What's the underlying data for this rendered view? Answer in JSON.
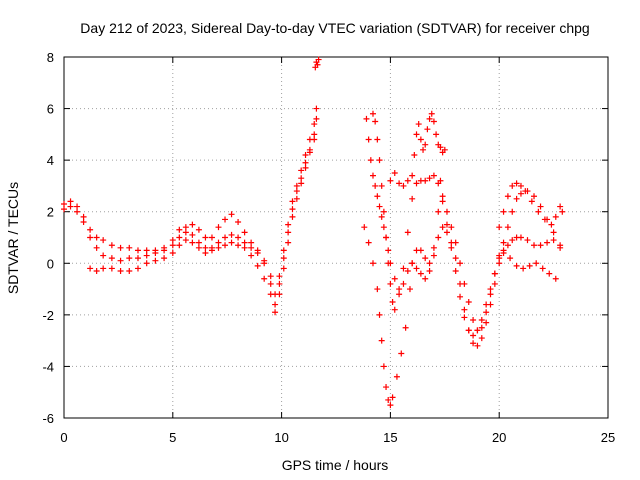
{
  "chart_data": {
    "type": "scatter",
    "title": "Day 212 of 2023, Sidereal Day-to-day VTEC variation (SDTVAR) for receiver chpg",
    "xlabel": "GPS time / hours",
    "ylabel": "SDTVAR / TECUs",
    "xlim": [
      0,
      25
    ],
    "ylim": [
      -6,
      8
    ],
    "xticks": [
      0,
      5,
      10,
      15,
      20,
      25
    ],
    "yticks": [
      -6,
      -4,
      -2,
      0,
      2,
      4,
      6,
      8
    ],
    "grid": true,
    "legend": "none",
    "marker": "+",
    "color": "#ff0000",
    "series": [
      {
        "points": [
          [
            0.0,
            2.3
          ],
          [
            0.3,
            2.4
          ],
          [
            0.6,
            2.2
          ],
          [
            0.9,
            1.8
          ],
          [
            1.2,
            1.3
          ],
          [
            1.5,
            1.0
          ],
          [
            1.8,
            0.9
          ],
          [
            2.2,
            0.7
          ],
          [
            2.6,
            0.6
          ],
          [
            3.0,
            0.6
          ],
          [
            3.4,
            0.5
          ],
          [
            3.8,
            0.5
          ],
          [
            4.2,
            0.5
          ],
          [
            4.6,
            0.6
          ],
          [
            5.0,
            0.9
          ],
          [
            5.3,
            1.3
          ],
          [
            5.6,
            1.4
          ],
          [
            5.9,
            1.1
          ],
          [
            6.2,
            0.8
          ],
          [
            6.5,
            0.6
          ],
          [
            6.8,
            0.6
          ],
          [
            7.1,
            0.8
          ],
          [
            7.4,
            1.0
          ],
          [
            7.7,
            1.1
          ],
          [
            8.0,
            1.0
          ],
          [
            8.3,
            0.8
          ],
          [
            8.6,
            0.6
          ],
          [
            8.9,
            0.4
          ],
          [
            9.2,
            0.1
          ],
          [
            9.5,
            -0.5
          ],
          [
            9.7,
            -1.2
          ],
          [
            9.9,
            -0.5
          ],
          [
            10.1,
            0.5
          ],
          [
            10.3,
            1.5
          ],
          [
            10.5,
            2.4
          ],
          [
            10.7,
            3.0
          ],
          [
            10.9,
            3.6
          ],
          [
            11.1,
            4.2
          ],
          [
            11.3,
            4.8
          ],
          [
            11.5,
            5.4
          ],
          [
            11.6,
            6.0
          ]
        ]
      },
      {
        "points": [
          [
            0.0,
            2.1
          ],
          [
            0.3,
            2.2
          ],
          [
            0.6,
            2.0
          ],
          [
            0.9,
            1.6
          ],
          [
            1.2,
            1.0
          ],
          [
            1.5,
            0.6
          ],
          [
            1.8,
            0.3
          ],
          [
            2.2,
            0.2
          ],
          [
            2.6,
            0.1
          ],
          [
            3.0,
            0.2
          ],
          [
            3.4,
            0.2
          ],
          [
            3.8,
            0.3
          ],
          [
            4.2,
            0.4
          ],
          [
            4.6,
            0.5
          ],
          [
            5.0,
            0.7
          ],
          [
            5.3,
            1.0
          ],
          [
            5.6,
            1.2
          ],
          [
            5.9,
            1.5
          ],
          [
            6.2,
            1.3
          ],
          [
            6.5,
            1.0
          ],
          [
            6.8,
            1.0
          ],
          [
            7.1,
            1.4
          ],
          [
            7.4,
            1.7
          ],
          [
            7.7,
            1.9
          ],
          [
            8.0,
            1.6
          ],
          [
            8.3,
            1.2
          ],
          [
            8.6,
            0.8
          ],
          [
            8.9,
            0.5
          ],
          [
            9.2,
            0.0
          ],
          [
            9.5,
            -0.8
          ],
          [
            9.7,
            -1.6
          ],
          [
            9.9,
            -0.8
          ],
          [
            10.1,
            0.2
          ],
          [
            10.3,
            1.2
          ],
          [
            10.5,
            2.1
          ],
          [
            10.7,
            2.8
          ],
          [
            10.9,
            3.3
          ],
          [
            11.1,
            3.9
          ],
          [
            11.3,
            4.4
          ],
          [
            11.5,
            5.0
          ],
          [
            11.6,
            5.6
          ]
        ]
      },
      {
        "points": [
          [
            1.2,
            -0.2
          ],
          [
            1.5,
            -0.3
          ],
          [
            1.8,
            -0.2
          ],
          [
            2.2,
            -0.2
          ],
          [
            2.6,
            -0.3
          ],
          [
            3.0,
            -0.3
          ],
          [
            3.4,
            -0.2
          ],
          [
            3.8,
            0.0
          ],
          [
            4.2,
            0.1
          ],
          [
            4.6,
            0.2
          ],
          [
            5.0,
            0.4
          ],
          [
            5.3,
            0.7
          ],
          [
            5.6,
            0.9
          ],
          [
            5.9,
            0.8
          ],
          [
            6.2,
            0.6
          ],
          [
            6.5,
            0.4
          ],
          [
            6.8,
            0.5
          ],
          [
            7.1,
            0.6
          ],
          [
            7.4,
            0.7
          ],
          [
            7.7,
            0.8
          ],
          [
            8.0,
            0.7
          ],
          [
            8.3,
            0.6
          ],
          [
            8.6,
            0.3
          ],
          [
            8.9,
            -0.1
          ],
          [
            9.2,
            -0.6
          ],
          [
            9.5,
            -1.2
          ],
          [
            9.7,
            -1.9
          ],
          [
            9.9,
            -1.2
          ],
          [
            10.1,
            -0.2
          ],
          [
            10.3,
            0.8
          ],
          [
            10.5,
            1.8
          ],
          [
            10.7,
            2.5
          ],
          [
            10.9,
            3.1
          ],
          [
            11.1,
            3.7
          ],
          [
            11.3,
            4.3
          ],
          [
            11.5,
            4.8
          ]
        ]
      },
      {
        "points": [
          [
            11.55,
            7.6
          ],
          [
            11.6,
            7.8
          ],
          [
            11.65,
            7.7
          ],
          [
            11.7,
            7.9
          ]
        ]
      },
      {
        "points": [
          [
            13.9,
            5.6
          ],
          [
            14.0,
            4.8
          ],
          [
            14.1,
            4.0
          ],
          [
            14.2,
            3.4
          ],
          [
            14.3,
            3.0
          ],
          [
            14.4,
            2.6
          ],
          [
            14.5,
            2.2
          ],
          [
            14.6,
            1.8
          ],
          [
            14.7,
            1.4
          ],
          [
            14.8,
            1.0
          ],
          [
            14.9,
            0.5
          ],
          [
            15.0,
            0.0
          ],
          [
            15.2,
            -0.6
          ],
          [
            15.4,
            -1.0
          ],
          [
            15.6,
            -0.8
          ],
          [
            15.8,
            -0.3
          ],
          [
            16.0,
            0.0
          ],
          [
            16.2,
            -0.2
          ],
          [
            16.4,
            -0.4
          ],
          [
            16.6,
            -0.6
          ],
          [
            16.8,
            -0.3
          ],
          [
            17.0,
            0.3
          ],
          [
            17.2,
            1.0
          ],
          [
            17.4,
            1.4
          ],
          [
            17.6,
            1.2
          ],
          [
            17.8,
            0.6
          ],
          [
            18.0,
            -0.3
          ],
          [
            18.2,
            -1.3
          ],
          [
            18.4,
            -2.1
          ],
          [
            18.6,
            -2.6
          ],
          [
            18.8,
            -2.8
          ],
          [
            19.0,
            -2.6
          ],
          [
            19.2,
            -2.2
          ],
          [
            19.4,
            -1.6
          ],
          [
            19.6,
            -1.0
          ],
          [
            19.8,
            -0.4
          ],
          [
            20.0,
            0.2
          ],
          [
            20.2,
            0.8
          ],
          [
            20.4,
            1.4
          ],
          [
            20.6,
            2.0
          ],
          [
            20.8,
            2.5
          ],
          [
            21.0,
            2.7
          ],
          [
            21.3,
            2.8
          ],
          [
            21.6,
            2.6
          ],
          [
            21.9,
            2.2
          ],
          [
            22.2,
            1.7
          ],
          [
            22.5,
            1.2
          ],
          [
            22.8,
            0.7
          ]
        ]
      },
      {
        "points": [
          [
            13.8,
            1.4
          ],
          [
            14.0,
            0.8
          ],
          [
            14.2,
            0.0
          ],
          [
            14.4,
            -1.0
          ],
          [
            14.5,
            -2.0
          ],
          [
            14.6,
            -3.0
          ],
          [
            14.7,
            -4.0
          ],
          [
            14.8,
            -4.8
          ],
          [
            14.9,
            -5.3
          ],
          [
            15.0,
            -5.5
          ],
          [
            15.1,
            -5.2
          ],
          [
            15.3,
            -4.4
          ],
          [
            15.5,
            -3.5
          ],
          [
            15.7,
            -2.5
          ],
          [
            15.9,
            -1.0
          ],
          [
            16.0,
            0.0
          ],
          [
            16.2,
            0.5
          ],
          [
            16.4,
            0.5
          ],
          [
            16.6,
            0.2
          ],
          [
            16.8,
            0.0
          ],
          [
            17.0,
            0.6
          ],
          [
            17.2,
            2.0
          ],
          [
            17.3,
            3.2
          ],
          [
            17.4,
            2.4
          ],
          [
            17.6,
            1.5
          ],
          [
            17.8,
            0.8
          ],
          [
            18.0,
            0.2
          ],
          [
            18.2,
            -0.8
          ],
          [
            18.4,
            -1.8
          ],
          [
            18.6,
            -2.6
          ],
          [
            18.8,
            -3.1
          ],
          [
            19.0,
            -3.2
          ],
          [
            19.2,
            -2.9
          ],
          [
            19.4,
            -2.3
          ],
          [
            19.6,
            -1.6
          ],
          [
            19.8,
            -0.8
          ],
          [
            20.0,
            0.0
          ],
          [
            20.2,
            0.4
          ],
          [
            20.5,
            0.2
          ],
          [
            20.8,
            -0.1
          ],
          [
            21.1,
            -0.2
          ],
          [
            21.4,
            -0.1
          ],
          [
            21.7,
            0.0
          ],
          [
            22.0,
            -0.2
          ],
          [
            22.3,
            -0.4
          ],
          [
            22.6,
            -0.6
          ]
        ]
      },
      {
        "points": [
          [
            14.2,
            5.8
          ],
          [
            14.3,
            5.5
          ],
          [
            14.4,
            4.8
          ],
          [
            14.5,
            4.0
          ],
          [
            14.6,
            3.0
          ],
          [
            14.7,
            2.0
          ],
          [
            14.8,
            1.0
          ],
          [
            14.9,
            0.0
          ],
          [
            15.0,
            -0.8
          ],
          [
            15.1,
            -1.5
          ],
          [
            15.2,
            -1.8
          ],
          [
            15.4,
            -1.2
          ],
          [
            15.6,
            -0.2
          ],
          [
            15.8,
            1.2
          ],
          [
            16.0,
            2.5
          ],
          [
            16.2,
            3.1
          ],
          [
            16.4,
            3.2
          ],
          [
            16.6,
            3.2
          ],
          [
            16.8,
            3.3
          ],
          [
            17.0,
            3.4
          ],
          [
            17.2,
            3.1
          ],
          [
            17.4,
            2.6
          ],
          [
            17.6,
            2.0
          ],
          [
            17.8,
            1.4
          ],
          [
            18.0,
            0.8
          ],
          [
            18.2,
            0.0
          ],
          [
            18.4,
            -0.8
          ],
          [
            18.6,
            -1.5
          ],
          [
            18.8,
            -2.2
          ],
          [
            19.0,
            -2.6
          ],
          [
            19.2,
            -2.5
          ],
          [
            19.4,
            -1.9
          ],
          [
            19.6,
            -1.2
          ],
          [
            19.8,
            -0.4
          ],
          [
            20.0,
            0.3
          ],
          [
            20.2,
            0.5
          ],
          [
            20.4,
            0.7
          ],
          [
            20.6,
            0.9
          ],
          [
            20.8,
            1.0
          ],
          [
            21.0,
            1.0
          ],
          [
            21.3,
            0.9
          ],
          [
            21.6,
            0.7
          ],
          [
            21.9,
            0.7
          ],
          [
            22.2,
            0.8
          ],
          [
            22.5,
            0.9
          ],
          [
            22.8,
            0.6
          ]
        ]
      },
      {
        "points": [
          [
            15.0,
            3.2
          ],
          [
            15.2,
            3.5
          ],
          [
            15.4,
            3.1
          ],
          [
            15.6,
            3.0
          ],
          [
            15.8,
            3.2
          ],
          [
            16.0,
            3.4
          ],
          [
            16.1,
            4.2
          ],
          [
            16.2,
            5.0
          ],
          [
            16.3,
            5.4
          ],
          [
            16.4,
            4.8
          ],
          [
            16.5,
            4.4
          ],
          [
            16.6,
            4.6
          ],
          [
            16.7,
            5.2
          ],
          [
            16.8,
            5.6
          ],
          [
            16.9,
            5.8
          ],
          [
            17.0,
            5.5
          ],
          [
            17.1,
            5.0
          ],
          [
            17.2,
            4.6
          ],
          [
            17.3,
            4.5
          ],
          [
            17.4,
            4.3
          ],
          [
            17.5,
            4.4
          ]
        ]
      },
      {
        "points": [
          [
            20.0,
            1.4
          ],
          [
            20.2,
            2.0
          ],
          [
            20.4,
            2.6
          ],
          [
            20.6,
            3.0
          ],
          [
            20.8,
            3.1
          ],
          [
            21.0,
            3.0
          ],
          [
            21.2,
            2.8
          ],
          [
            21.5,
            2.4
          ],
          [
            21.8,
            2.0
          ],
          [
            22.1,
            1.7
          ],
          [
            22.4,
            1.5
          ],
          [
            22.6,
            1.8
          ],
          [
            22.8,
            2.2
          ],
          [
            22.9,
            2.0
          ]
        ]
      }
    ]
  }
}
